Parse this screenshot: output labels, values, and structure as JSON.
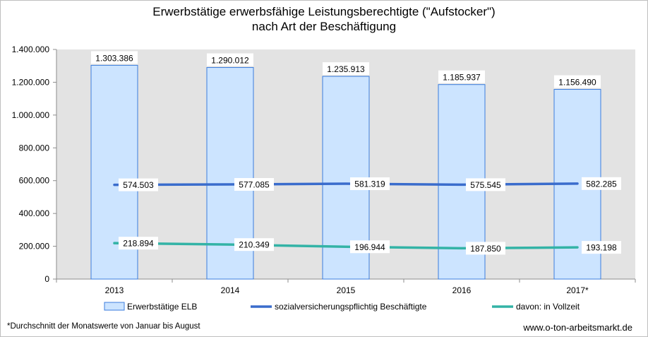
{
  "chart_data": {
    "type": "bar",
    "title_line1": "Erwerbstätige erwerbsfähige Leistungsberechtigte (\"Aufstocker\")",
    "title_line2": "nach Art der Beschäftigung",
    "categories": [
      "2013",
      "2014",
      "2015",
      "2016",
      "2017*"
    ],
    "ylim": [
      0,
      1400000
    ],
    "yticks": [
      {
        "value": 0,
        "label": "0"
      },
      {
        "value": 200000,
        "label": "200.000"
      },
      {
        "value": 400000,
        "label": "400.000"
      },
      {
        "value": 600000,
        "label": "600.000"
      },
      {
        "value": 800000,
        "label": "800.000"
      },
      {
        "value": 1000000,
        "label": "1.000.000"
      },
      {
        "value": 1200000,
        "label": "1.200.000"
      },
      {
        "value": 1400000,
        "label": "1.400.000"
      }
    ],
    "grid": false,
    "legend_position": "bottom",
    "series": [
      {
        "name": "Erwerbstätige ELB",
        "type": "bar",
        "values": [
          1303386,
          1290012,
          1235913,
          1185937,
          1156490
        ],
        "labels": [
          "1.303.386",
          "1.290.012",
          "1.235.913",
          "1.185.937",
          "1.156.490"
        ],
        "color": "#cce4ff",
        "stroke": "#3b7ddd"
      },
      {
        "name": "sozialversicherungspflichtig Beschäftigte",
        "type": "line",
        "values": [
          574503,
          577085,
          581319,
          575545,
          582285
        ],
        "labels": [
          "574.503",
          "577.085",
          "581.319",
          "575.545",
          "582.285"
        ],
        "color": "#3a6ccc"
      },
      {
        "name": "davon: in Vollzeit",
        "type": "line",
        "values": [
          218894,
          210349,
          196944,
          187850,
          193198
        ],
        "labels": [
          "218.894",
          "210.349",
          "196.944",
          "187.850",
          "193.198"
        ],
        "color": "#33b3a6"
      }
    ],
    "plot_background": "#e3e3e3"
  },
  "footnote": "*Durchschnitt der Monatswerte von Januar bis August",
  "website": "www.o-ton-arbeitsmarkt.de"
}
